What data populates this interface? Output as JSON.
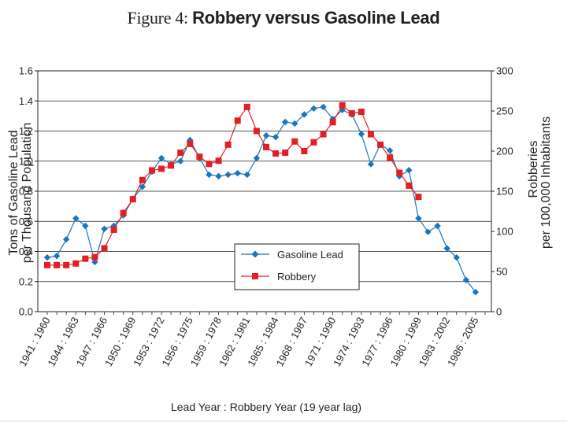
{
  "title_prefix": "Figure 4: ",
  "title_main": "Robbery versus Gasoline Lead",
  "chart_data": {
    "type": "line",
    "title": "Figure 4: Robbery versus Gasoline Lead",
    "xlabel": "Lead Year : Robbery Year (19 year lag)",
    "ylabel_left": [
      "Tons of Gasoline Lead",
      "per Thousand Population"
    ],
    "ylabel_right": [
      "Robberies",
      "per 100,000 Inhabitants"
    ],
    "ylim_left": [
      0,
      1.6
    ],
    "ylim_right": [
      0,
      300
    ],
    "yticks_left": [
      "0.0",
      "0.2",
      "0.4",
      "0.6",
      "0.8",
      "1.0",
      "1.2",
      "1.4",
      "1.6"
    ],
    "yticks_right": [
      "0",
      "50",
      "100",
      "150",
      "200",
      "250",
      "300"
    ],
    "grid": true,
    "x_tick_labels": [
      "1941 : 1960",
      "1944 : 1963",
      "1947 : 1966",
      "1950 : 1969",
      "1953 : 1972",
      "1956 : 1975",
      "1959 : 1978",
      "1962 : 1981",
      "1965 : 1984",
      "1968 : 1987",
      "1971 : 1990",
      "1974 : 1993",
      "1977 : 1996",
      "1980 : 1999",
      "1983 : 2002",
      "1986 : 2005"
    ],
    "lead_years": [
      1941,
      1942,
      1943,
      1944,
      1945,
      1946,
      1947,
      1948,
      1949,
      1950,
      1951,
      1952,
      1953,
      1954,
      1955,
      1956,
      1957,
      1958,
      1959,
      1960,
      1961,
      1962,
      1963,
      1964,
      1965,
      1966,
      1967,
      1968,
      1969,
      1970,
      1971,
      1972,
      1973,
      1974,
      1975,
      1976,
      1977,
      1978,
      1979,
      1980,
      1981,
      1982,
      1983,
      1984,
      1985,
      1986,
      1987
    ],
    "series": [
      {
        "name": "Gasoline Lead",
        "axis": "left",
        "color": "#1b75bb",
        "marker": "diamond",
        "values": [
          0.36,
          0.37,
          0.48,
          0.62,
          0.57,
          0.33,
          0.55,
          0.57,
          0.64,
          0.75,
          0.83,
          0.93,
          1.02,
          0.98,
          1.0,
          1.14,
          1.02,
          0.91,
          0.9,
          0.91,
          0.92,
          0.91,
          1.02,
          1.17,
          1.16,
          1.26,
          1.25,
          1.31,
          1.35,
          1.36,
          1.28,
          1.34,
          1.31,
          1.18,
          0.98,
          1.11,
          1.07,
          0.9,
          0.94,
          0.62,
          0.53,
          0.57,
          0.42,
          0.36,
          0.21,
          0.13,
          null
        ]
      },
      {
        "name": "Robbery",
        "axis": "right",
        "color": "#e31f26",
        "marker": "square",
        "values": [
          58,
          58,
          58,
          60,
          66,
          68,
          79,
          102,
          123,
          140,
          164,
          176,
          178,
          182,
          198,
          209,
          193,
          184,
          188,
          208,
          238,
          255,
          225,
          205,
          197,
          198,
          212,
          200,
          211,
          221,
          236,
          257,
          247,
          249,
          221,
          208,
          192,
          173,
          157,
          143,
          null,
          null,
          null,
          null,
          null,
          null,
          null
        ]
      }
    ],
    "legend": {
      "position": "lower-center",
      "entries": [
        "Gasoline Lead",
        "Robbery"
      ]
    }
  }
}
